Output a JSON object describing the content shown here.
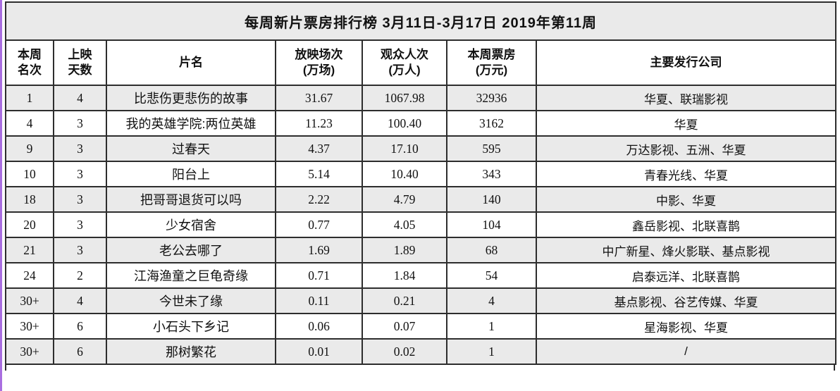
{
  "title": "每周新片票房排行榜  3月11日-3月17日  2019年第11周",
  "colors": {
    "accent_left_edge": "#a96ee0",
    "row_alternate": "#eaeaea",
    "border": "#2d2d2d",
    "background": "#ffffff"
  },
  "table": {
    "headers": [
      {
        "key": "rank",
        "label": "本周\n名次"
      },
      {
        "key": "days",
        "label": "上映\n天数"
      },
      {
        "key": "title",
        "label": "片名"
      },
      {
        "key": "screenings",
        "label": "放映场次\n(万场)"
      },
      {
        "key": "audience",
        "label": "观众人次\n(万人)"
      },
      {
        "key": "revenue",
        "label": "本周票房\n(万元)"
      },
      {
        "key": "distributors",
        "label": "主要发行公司"
      }
    ],
    "rows": [
      {
        "rank": "1",
        "days": "4",
        "title": "比悲伤更悲伤的故事",
        "screenings": "31.67",
        "audience": "1067.98",
        "revenue": "32936",
        "distributors": "华夏、联瑞影视"
      },
      {
        "rank": "4",
        "days": "3",
        "title": "我的英雄学院:两位英雄",
        "screenings": "11.23",
        "audience": "100.40",
        "revenue": "3162",
        "distributors": "华夏"
      },
      {
        "rank": "9",
        "days": "3",
        "title": "过春天",
        "screenings": "4.37",
        "audience": "17.10",
        "revenue": "595",
        "distributors": "万达影视、五洲、华夏"
      },
      {
        "rank": "10",
        "days": "3",
        "title": "阳台上",
        "screenings": "5.14",
        "audience": "10.40",
        "revenue": "343",
        "distributors": "青春光线、华夏"
      },
      {
        "rank": "18",
        "days": "3",
        "title": "把哥哥退货可以吗",
        "screenings": "2.22",
        "audience": "4.79",
        "revenue": "140",
        "distributors": "中影、华夏"
      },
      {
        "rank": "20",
        "days": "3",
        "title": "少女宿舍",
        "screenings": "0.77",
        "audience": "4.05",
        "revenue": "104",
        "distributors": "鑫岳影视、北联喜鹊"
      },
      {
        "rank": "21",
        "days": "3",
        "title": "老公去哪了",
        "screenings": "1.69",
        "audience": "1.89",
        "revenue": "68",
        "distributors": "中广新星、烽火影联、基点影视"
      },
      {
        "rank": "24",
        "days": "2",
        "title": "江海渔童之巨龟奇缘",
        "screenings": "0.71",
        "audience": "1.84",
        "revenue": "54",
        "distributors": "启泰远洋、北联喜鹊"
      },
      {
        "rank": "30+",
        "days": "4",
        "title": "今世未了缘",
        "screenings": "0.11",
        "audience": "0.21",
        "revenue": "4",
        "distributors": "基点影视、谷艺传媒、华夏"
      },
      {
        "rank": "30+",
        "days": "6",
        "title": "小石头下乡记",
        "screenings": "0.06",
        "audience": "0.07",
        "revenue": "1",
        "distributors": "星海影视、华夏"
      },
      {
        "rank": "30+",
        "days": "6",
        "title": "那树繁花",
        "screenings": "0.01",
        "audience": "0.02",
        "revenue": "1",
        "distributors": "/"
      }
    ]
  }
}
